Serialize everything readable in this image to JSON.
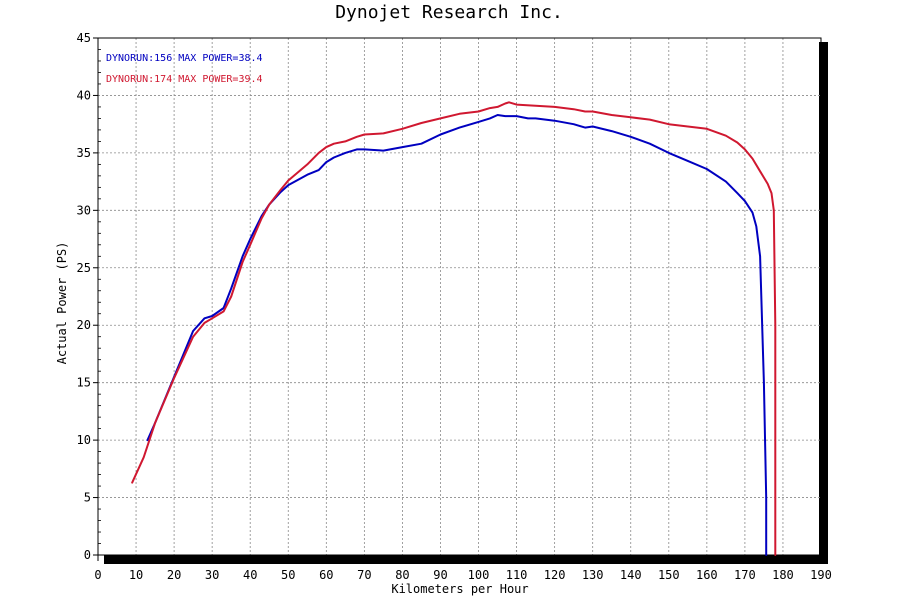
{
  "chart_data": {
    "type": "line",
    "title": "Dynojet  Research  Inc.",
    "xlabel": "Kilometers per Hour",
    "ylabel": "Actual Power (PS)",
    "xlim": [
      0,
      190
    ],
    "ylim": [
      0,
      45
    ],
    "x_ticks": [
      0,
      10,
      20,
      30,
      40,
      50,
      60,
      70,
      80,
      90,
      100,
      110,
      120,
      130,
      140,
      150,
      160,
      170,
      180,
      190
    ],
    "y_ticks": [
      0,
      5,
      10,
      15,
      20,
      25,
      30,
      35,
      40,
      45
    ],
    "grid": true,
    "legend_position": "top-left",
    "series": [
      {
        "name": "DYNORUN:156  MAX POWER=38.4",
        "color": "#0000c0",
        "x": [
          13,
          15,
          20,
          25,
          28,
          30,
          33,
          35,
          38,
          40,
          43,
          45,
          48,
          50,
          55,
          58,
          60,
          62,
          65,
          68,
          70,
          75,
          80,
          85,
          90,
          95,
          100,
          103,
          105,
          107,
          110,
          113,
          115,
          120,
          125,
          128,
          130,
          135,
          140,
          145,
          150,
          155,
          160,
          165,
          168,
          170,
          172,
          173,
          174,
          175,
          175.6,
          175.6
        ],
        "y": [
          10.0,
          11.5,
          15.5,
          19.5,
          20.6,
          20.8,
          21.5,
          23.2,
          26.0,
          27.5,
          29.5,
          30.5,
          31.6,
          32.2,
          33.1,
          33.5,
          34.2,
          34.6,
          35.0,
          35.3,
          35.3,
          35.2,
          35.5,
          35.8,
          36.6,
          37.2,
          37.7,
          38.0,
          38.3,
          38.2,
          38.2,
          38.0,
          38.0,
          37.8,
          37.5,
          37.2,
          37.3,
          36.9,
          36.4,
          35.8,
          35.0,
          34.3,
          33.6,
          32.5,
          31.5,
          30.8,
          29.8,
          28.6,
          26.0,
          15.0,
          5.0,
          0
        ]
      },
      {
        "name": "DYNORUN:174  MAX POWER=39.4",
        "color": "#d01830",
        "x": [
          9,
          12,
          15,
          20,
          25,
          28,
          30,
          33,
          35,
          38,
          40,
          43,
          45,
          48,
          50,
          55,
          58,
          60,
          62,
          65,
          68,
          70,
          75,
          80,
          85,
          90,
          95,
          100,
          103,
          105,
          107,
          108,
          110,
          115,
          120,
          125,
          128,
          130,
          135,
          140,
          145,
          150,
          155,
          160,
          165,
          168,
          170,
          172,
          174,
          176,
          177,
          177.6,
          178,
          178
        ],
        "y": [
          6.3,
          8.5,
          11.5,
          15.4,
          19.0,
          20.2,
          20.6,
          21.2,
          22.5,
          25.5,
          27.0,
          29.3,
          30.5,
          31.8,
          32.6,
          34.0,
          35.0,
          35.5,
          35.8,
          36.0,
          36.4,
          36.6,
          36.7,
          37.1,
          37.6,
          38.0,
          38.4,
          38.6,
          38.9,
          39.0,
          39.3,
          39.4,
          39.2,
          39.1,
          39.0,
          38.8,
          38.6,
          38.6,
          38.3,
          38.1,
          37.9,
          37.5,
          37.3,
          37.1,
          36.5,
          35.9,
          35.3,
          34.5,
          33.4,
          32.3,
          31.5,
          30.0,
          20.0,
          0
        ]
      }
    ]
  }
}
